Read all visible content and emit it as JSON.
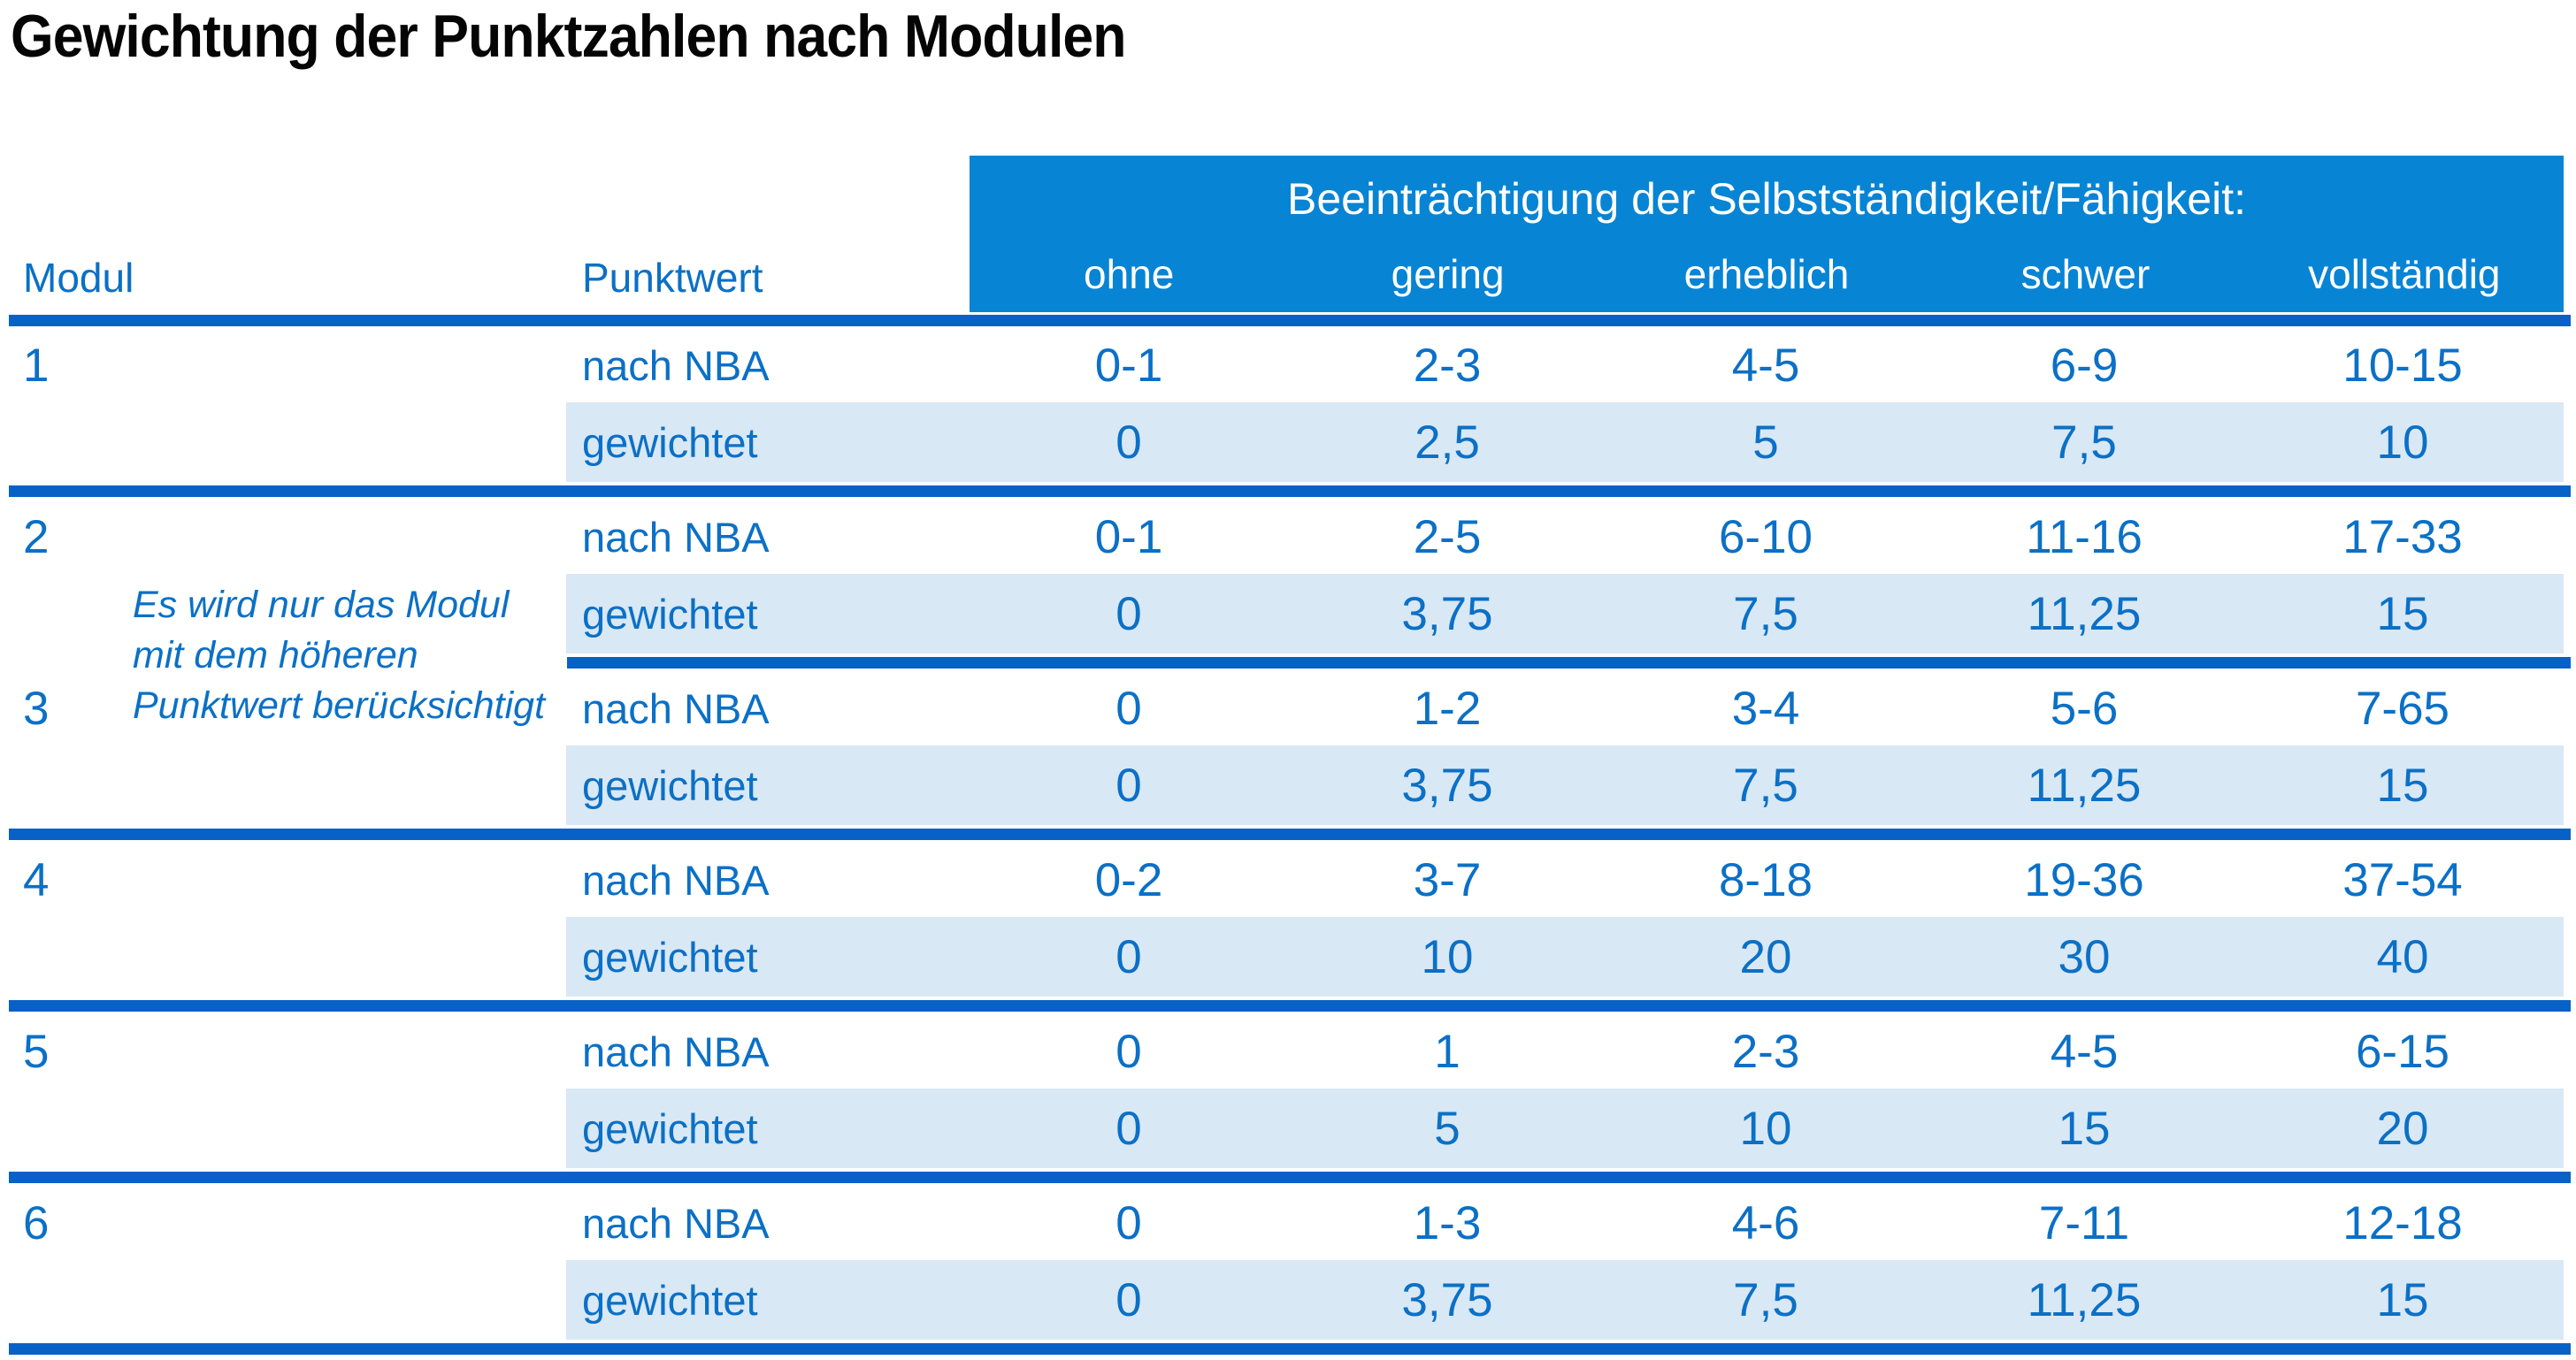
{
  "title": "Gewichtung der Punktzahlen nach Modulen",
  "colors": {
    "header_bg": "#0884D4",
    "band_bg": "#D9E8F5",
    "text_blue": "#0B70C6",
    "rule_blue": "#0861C6",
    "header_text": "#FFFFFF",
    "title_color": "#050505",
    "page_bg": "#FFFFFF"
  },
  "table": {
    "left_headers": [
      "Modul",
      "Punktwert"
    ],
    "span_header": "Beeinträchtigung der Selbstständigkeit/Fähigkeit:",
    "severity_headers": [
      "ohne",
      "gering",
      "erheblich",
      "schwer",
      "vollständig"
    ],
    "row_label_nba": "nach NBA",
    "row_label_weighted": "gewichtet",
    "note": "Es wird nur das Modul mit dem höheren Punktwert berücksichtigt",
    "note_lines": [
      "Es wird nur das Modul",
      "mit dem höheren",
      "Punktwert berücksichtigt"
    ],
    "modules": [
      {
        "id": "1",
        "nba": [
          "0-1",
          "2-3",
          "4-5",
          "6-9",
          "10-15"
        ],
        "weighted": [
          "0",
          "2,5",
          "5",
          "7,5",
          "10"
        ]
      },
      {
        "id": "2",
        "nba": [
          "0-1",
          "2-5",
          "6-10",
          "11-16",
          "17-33"
        ],
        "weighted": [
          "0",
          "3,75",
          "7,5",
          "11,25",
          "15"
        ]
      },
      {
        "id": "3",
        "nba": [
          "0",
          "1-2",
          "3-4",
          "5-6",
          "7-65"
        ],
        "weighted": [
          "0",
          "3,75",
          "7,5",
          "11,25",
          "15"
        ]
      },
      {
        "id": "4",
        "nba": [
          "0-2",
          "3-7",
          "8-18",
          "19-36",
          "37-54"
        ],
        "weighted": [
          "0",
          "10",
          "20",
          "30",
          "40"
        ]
      },
      {
        "id": "5",
        "nba": [
          "0",
          "1",
          "2-3",
          "4-5",
          "6-15"
        ],
        "weighted": [
          "0",
          "5",
          "10",
          "15",
          "20"
        ]
      },
      {
        "id": "6",
        "nba": [
          "0",
          "1-3",
          "4-6",
          "7-11",
          "12-18"
        ],
        "weighted": [
          "0",
          "3,75",
          "7,5",
          "11,25",
          "15"
        ]
      }
    ]
  }
}
